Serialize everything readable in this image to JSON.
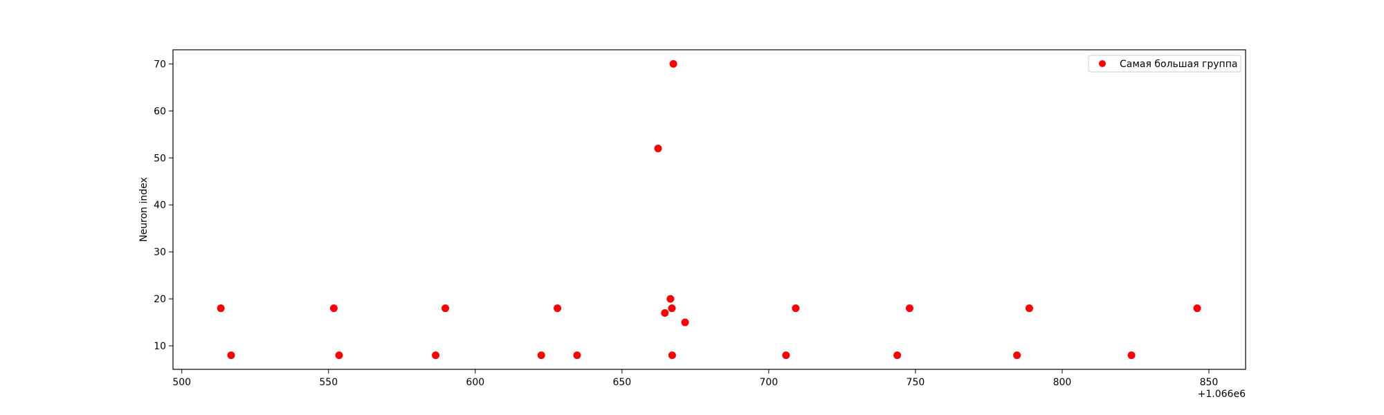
{
  "chart_data": {
    "type": "scatter",
    "title": "",
    "xlabel": "",
    "ylabel": "Neuron index",
    "x_offset_label": "+1.066e6",
    "xlim": [
      497,
      862.5
    ],
    "ylim": [
      5,
      73
    ],
    "xticks": [
      500,
      550,
      600,
      650,
      700,
      750,
      800,
      850
    ],
    "yticks": [
      10,
      20,
      30,
      40,
      50,
      60,
      70
    ],
    "grid": false,
    "legend_position": "top-right",
    "series": [
      {
        "name": "Самая большая группа",
        "color": "#ff0000",
        "points": [
          [
            513.3,
            18
          ],
          [
            516.8,
            8
          ],
          [
            551.8,
            18
          ],
          [
            553.6,
            8
          ],
          [
            586.5,
            8
          ],
          [
            589.8,
            18
          ],
          [
            622.5,
            8
          ],
          [
            628.0,
            18
          ],
          [
            634.7,
            8
          ],
          [
            662.3,
            52
          ],
          [
            664.6,
            17
          ],
          [
            666.5,
            20
          ],
          [
            667.0,
            18
          ],
          [
            667.1,
            8
          ],
          [
            667.5,
            70
          ],
          [
            671.5,
            15
          ],
          [
            705.9,
            8
          ],
          [
            709.2,
            18
          ],
          [
            743.8,
            8
          ],
          [
            748.0,
            18
          ],
          [
            784.6,
            8
          ],
          [
            788.8,
            18
          ],
          [
            823.6,
            8
          ],
          [
            846.0,
            18
          ]
        ]
      }
    ]
  }
}
